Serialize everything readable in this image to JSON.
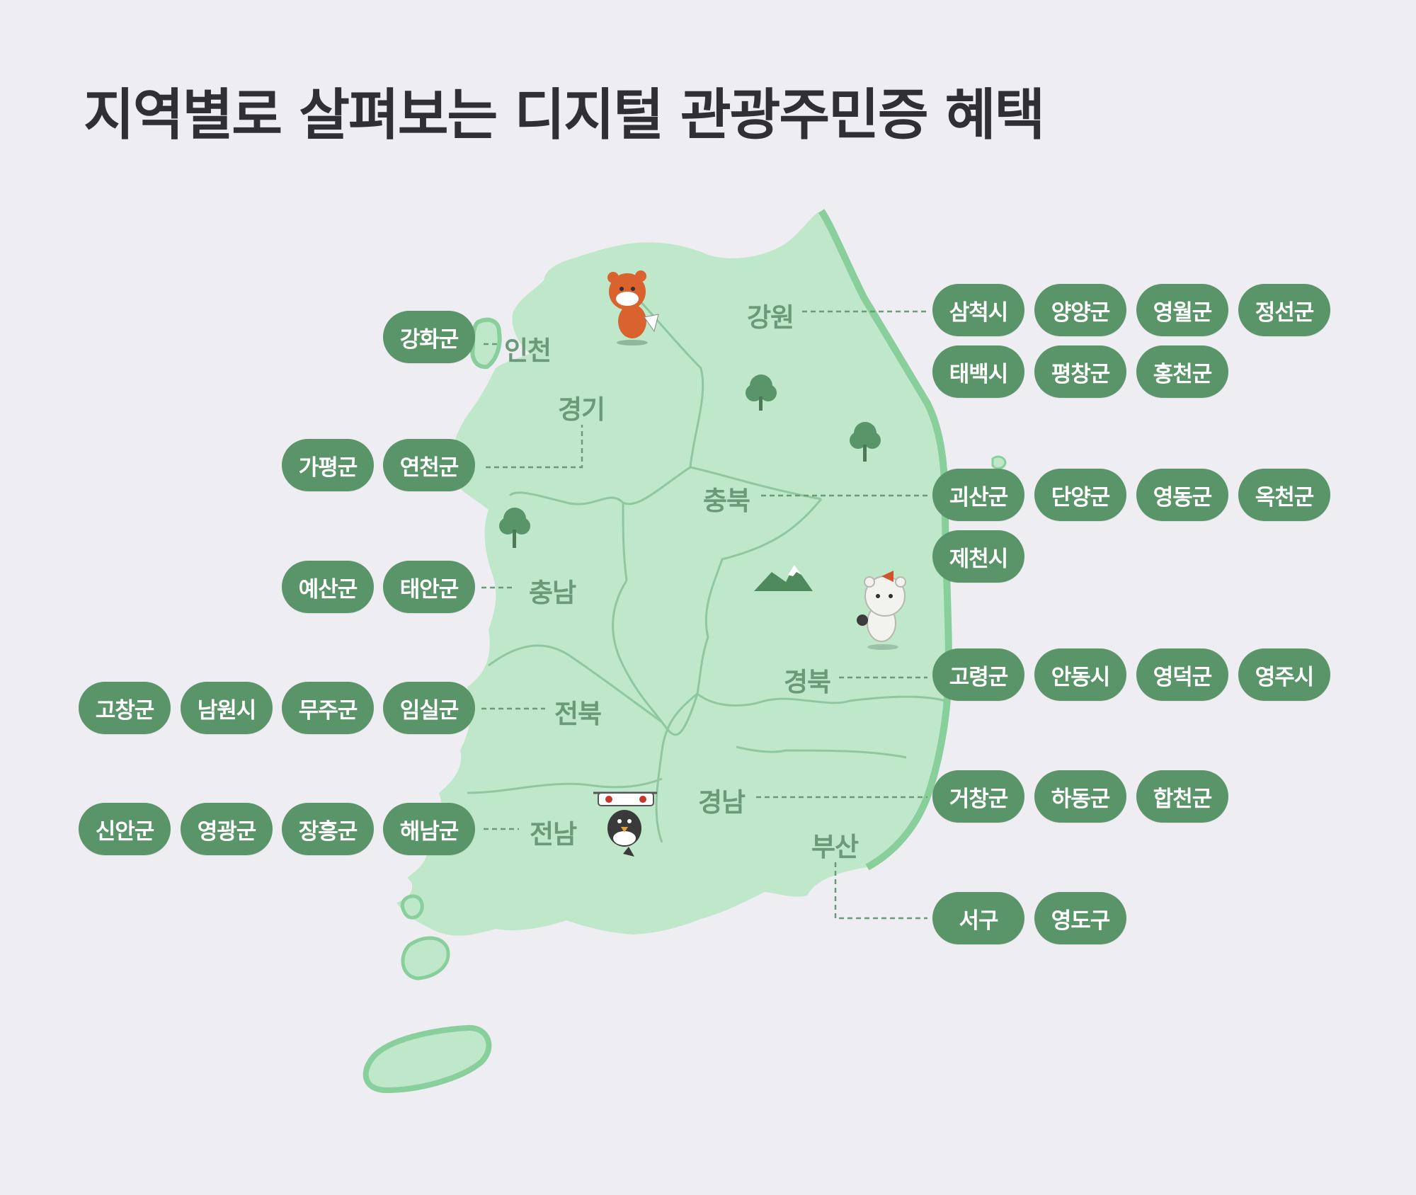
{
  "title": "지역별로 살펴보는 디지털 관광주민증 혜택",
  "colors": {
    "background": "#eeedf2",
    "land": "#bfe7c9",
    "coast": "#88cf9b",
    "pill": "#5a9469",
    "region_label": "#6a9a77"
  },
  "regions": {
    "incheon": {
      "label": "인천",
      "benefits": [
        "강화군"
      ]
    },
    "gyeonggi": {
      "label": "경기",
      "benefits": [
        "가평군",
        "연천군"
      ]
    },
    "gangwon": {
      "label": "강원",
      "benefits": [
        "삼척시",
        "양양군",
        "영월군",
        "정선군",
        "태백시",
        "평창군",
        "홍천군"
      ]
    },
    "chungbuk": {
      "label": "충북",
      "benefits": [
        "괴산군",
        "단양군",
        "영동군",
        "옥천군",
        "제천시"
      ]
    },
    "chungnam": {
      "label": "충남",
      "benefits": [
        "예산군",
        "태안군"
      ]
    },
    "gyeongbuk": {
      "label": "경북",
      "benefits": [
        "고령군",
        "안동시",
        "영덕군",
        "영주시"
      ]
    },
    "jeonbuk": {
      "label": "전북",
      "benefits": [
        "고창군",
        "남원시",
        "무주군",
        "임실군"
      ]
    },
    "gyeongnam": {
      "label": "경남",
      "benefits": [
        "거창군",
        "하동군",
        "합천군"
      ]
    },
    "jeonnam": {
      "label": "전남",
      "benefits": [
        "신안군",
        "영광군",
        "장흥군",
        "해남군"
      ]
    },
    "busan": {
      "label": "부산",
      "benefits": [
        "서구",
        "영도구"
      ]
    }
  },
  "icons": [
    "tree-icon",
    "mountain-icon",
    "tiger-mascot-icon",
    "bear-mascot-icon",
    "bird-mascot-icon"
  ]
}
